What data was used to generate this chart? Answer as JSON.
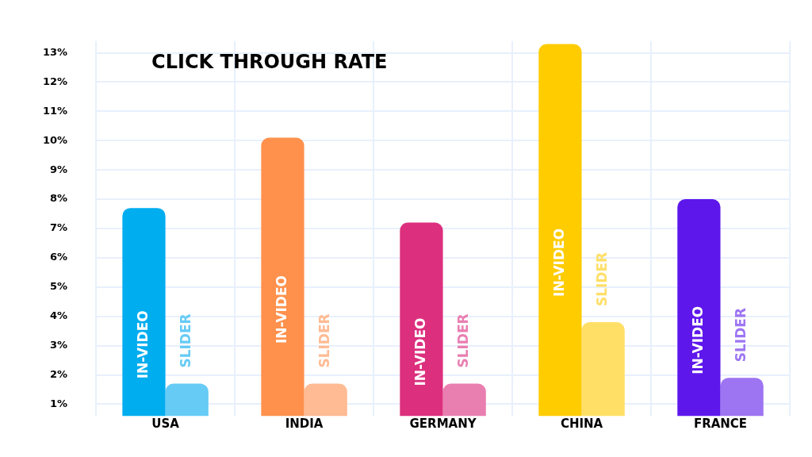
{
  "chart_data": {
    "type": "bar",
    "title": "CLICK THROUGH RATE",
    "categories": [
      "USA",
      "INDIA",
      "GERMANY",
      "CHINA",
      "FRANCE"
    ],
    "series": [
      {
        "name": "IN-VIDEO",
        "colors": [
          "#00adef",
          "#ff914d",
          "#dc307e",
          "#ffcc00",
          "#5e17eb"
        ],
        "values": [
          7.7,
          10.1,
          7.2,
          13.3,
          8.0
        ]
      },
      {
        "name": "SLIDER",
        "colors": [
          "#66cbf5",
          "#ffbb93",
          "#e97fb1",
          "#ffdf66",
          "#9d74f2"
        ],
        "values": [
          1.7,
          1.7,
          1.7,
          3.8,
          1.9
        ]
      }
    ],
    "ylim": [
      0.6,
      13.4
    ],
    "yticks": [
      {
        "value": 1,
        "label": "1%"
      },
      {
        "value": 2,
        "label": "2%"
      },
      {
        "value": 3,
        "label": "3%"
      },
      {
        "value": 4,
        "label": "4%"
      },
      {
        "value": 5,
        "label": "5%"
      },
      {
        "value": 6,
        "label": "6%"
      },
      {
        "value": 7,
        "label": "7%"
      },
      {
        "value": 8,
        "label": "8%"
      },
      {
        "value": 9,
        "label": "9%"
      },
      {
        "value": 10,
        "label": "10%"
      },
      {
        "value": 11,
        "label": "11%"
      },
      {
        "value": 12,
        "label": "12%"
      },
      {
        "value": 13,
        "label": "13%"
      }
    ],
    "grid": true,
    "legend": false
  }
}
